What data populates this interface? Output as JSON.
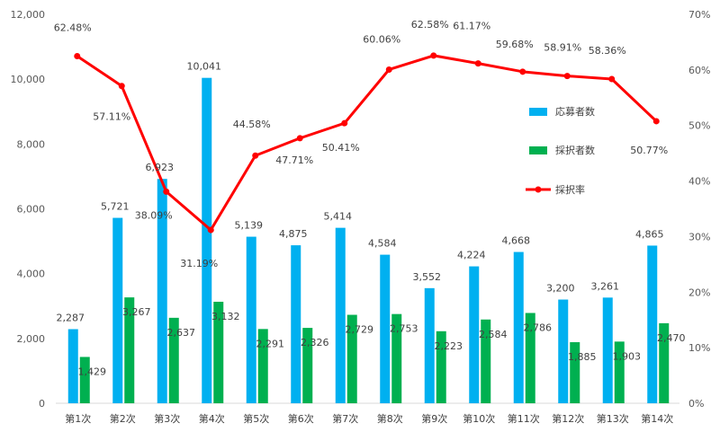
{
  "chart_data": {
    "type": "bar",
    "categories": [
      "第1次",
      "第2次",
      "第3次",
      "第4次",
      "第5次",
      "第6次",
      "第7次",
      "第8次",
      "第9次",
      "第10次",
      "第11次",
      "第12次",
      "第13次",
      "第14次"
    ],
    "series": [
      {
        "name": "応募者数",
        "type": "bar",
        "axis": "left",
        "color": "#00B0F0",
        "values": [
          2287,
          5721,
          6923,
          10041,
          5139,
          4875,
          5414,
          4584,
          3552,
          4224,
          4668,
          3200,
          3261,
          4865
        ],
        "labels": [
          "2,287",
          "5,721",
          "6,923",
          "10,041",
          "5,139",
          "4,875",
          "5,414",
          "4,584",
          "3,552",
          "4,224",
          "4,668",
          "3,200",
          "3,261",
          "4,865"
        ]
      },
      {
        "name": "採択者数",
        "type": "bar",
        "axis": "left",
        "color": "#00B050",
        "values": [
          1429,
          3267,
          2637,
          3132,
          2291,
          2326,
          2729,
          2753,
          2223,
          2584,
          2786,
          1885,
          1903,
          2470
        ],
        "labels": [
          "1,429",
          "3,267",
          "2,637",
          "3,132",
          "2,291",
          "2,326",
          "2,729",
          "2,753",
          "2,223",
          "2,584",
          "2,786",
          "1,885",
          "1,903",
          "2,470"
        ]
      },
      {
        "name": "採択率",
        "type": "line",
        "axis": "right",
        "color": "#FF0000",
        "values": [
          62.48,
          57.11,
          38.09,
          31.19,
          44.58,
          47.71,
          50.41,
          60.06,
          62.58,
          61.17,
          59.68,
          58.91,
          58.36,
          50.77
        ],
        "labels": [
          "62.48%",
          "57.11%",
          "38.09%",
          "31.19%",
          "44.58%",
          "47.71%",
          "50.41%",
          "60.06%",
          "62.58%",
          "61.17%",
          "59.68%",
          "58.91%",
          "58.36%",
          "50.77%"
        ]
      }
    ],
    "y_left": {
      "min": 0,
      "max": 12000,
      "ticks": [
        "0",
        "2,000",
        "4,000",
        "6,000",
        "8,000",
        "10,000",
        "12,000"
      ]
    },
    "y_right": {
      "min": 0,
      "max": 70,
      "unit": "%",
      "ticks": [
        "0%",
        "10%",
        "20%",
        "30%",
        "40%",
        "50%",
        "60%",
        "70%"
      ]
    },
    "legend_position": "right",
    "grid": false,
    "title": "",
    "xlabel": "",
    "ylabel": ""
  }
}
